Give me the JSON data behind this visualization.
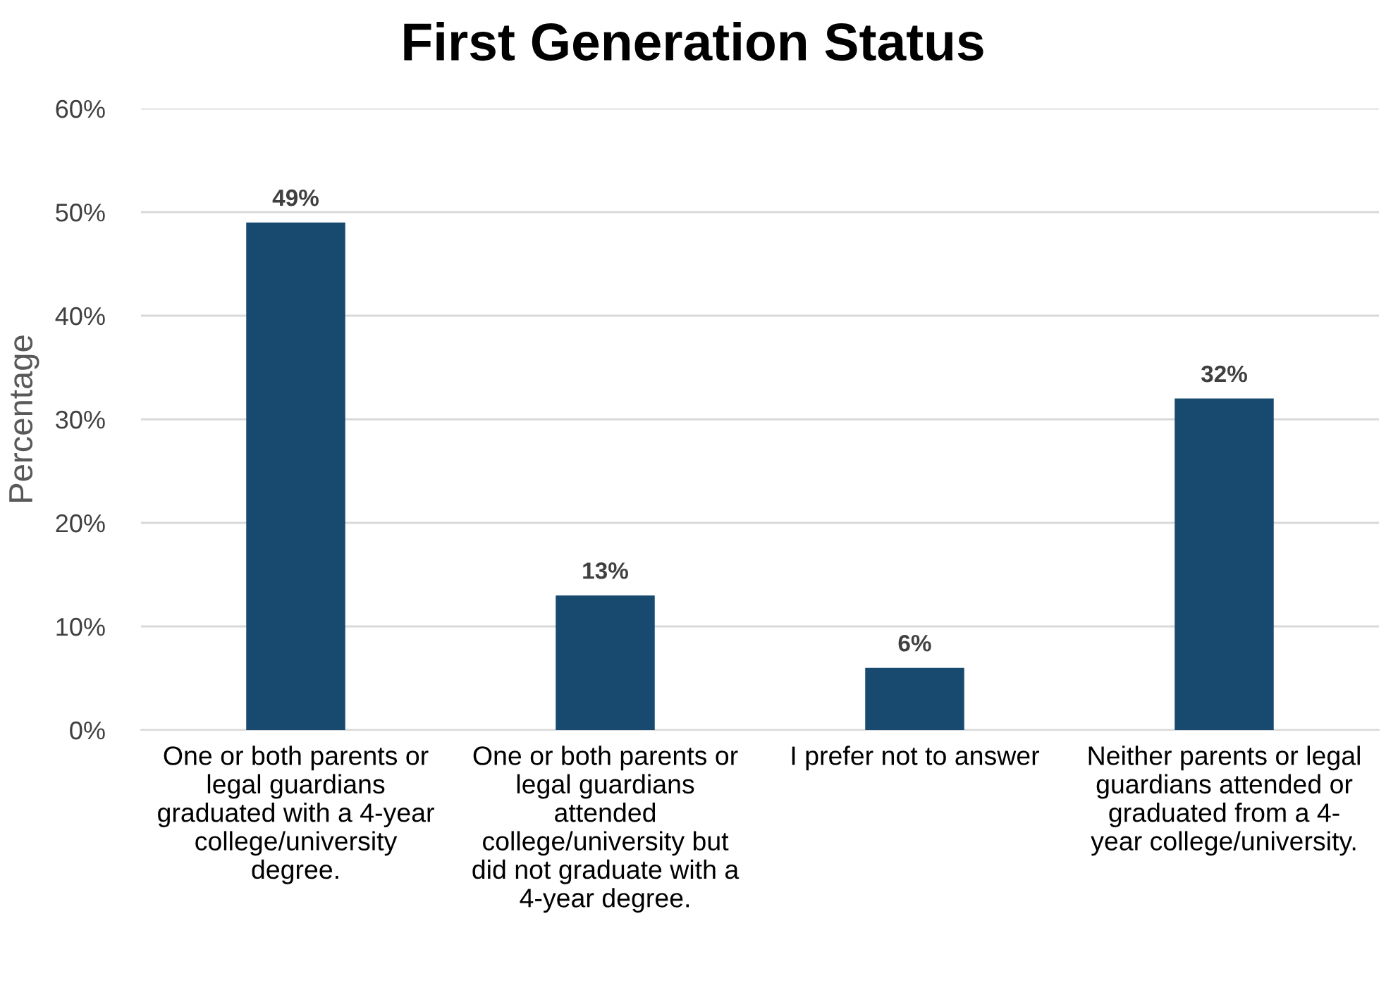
{
  "chart_data": {
    "type": "bar",
    "title": "First Generation Status",
    "ylabel": "Percentage",
    "categories": [
      "One or both parents or legal guardians graduated with a 4-year college/university degree.",
      "One or both parents or legal guardians attended college/university but did not graduate with a 4-year degree.",
      "I prefer not to answer",
      "Neither parents or legal guardians attended or graduated from a 4-year college/university."
    ],
    "values": [
      49,
      13,
      6,
      32
    ],
    "color": "#174a6e",
    "value_labels": [
      "49%",
      "13%",
      "6%",
      "32%"
    ],
    "ylim": [
      0,
      60
    ],
    "yticks": [
      {
        "value": 0,
        "label": "0%"
      },
      {
        "value": 10,
        "label": "10%"
      },
      {
        "value": 20,
        "label": "20%"
      },
      {
        "value": 30,
        "label": "30%"
      },
      {
        "value": 40,
        "label": "40%"
      },
      {
        "value": 50,
        "label": "50%"
      },
      {
        "value": 60,
        "label": "60%"
      }
    ],
    "grid": "y"
  }
}
